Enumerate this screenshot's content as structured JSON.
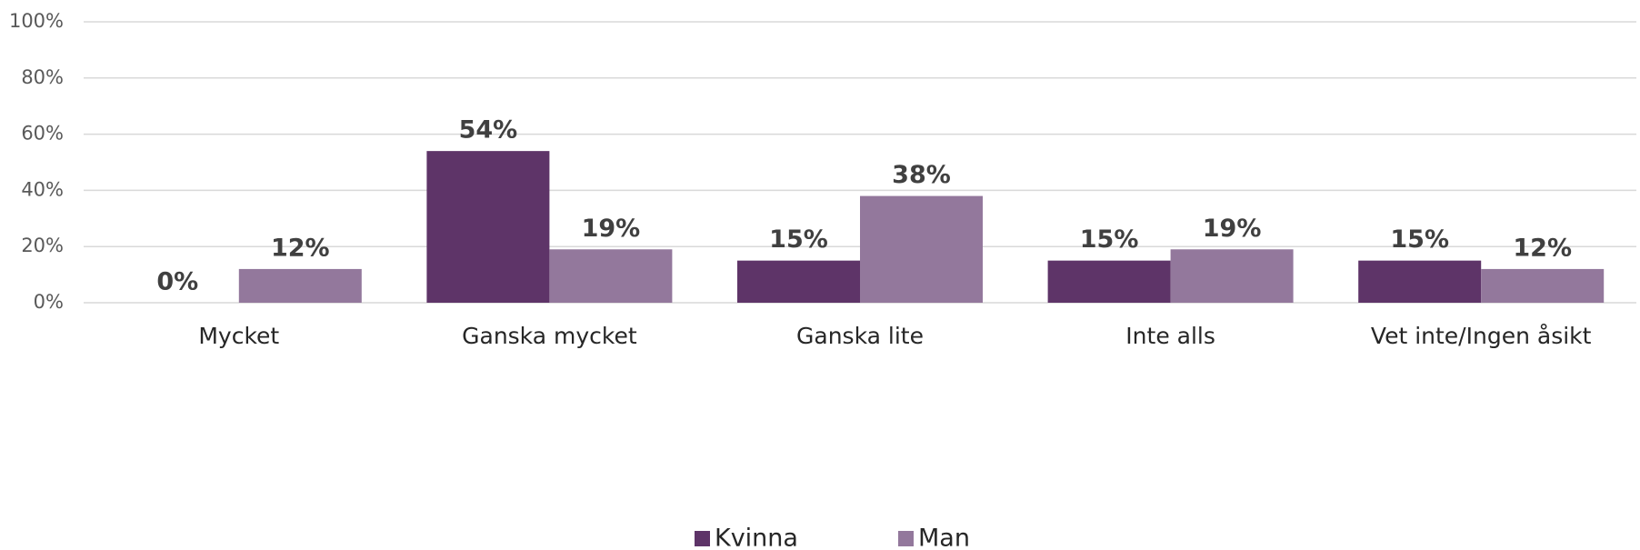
{
  "chart_data": {
    "type": "bar",
    "categories": [
      "Mycket",
      "Ganska mycket",
      "Ganska lite",
      "Inte alls",
      "Vet inte/Ingen åsikt"
    ],
    "series": [
      {
        "name": "Kvinna",
        "color": "#5e3468",
        "values": [
          0,
          54,
          15,
          15,
          15
        ],
        "value_labels": [
          "0%",
          "54%",
          "15%",
          "15%",
          "15%"
        ]
      },
      {
        "name": "Man",
        "color": "#93789c",
        "values": [
          12,
          19,
          38,
          19,
          12
        ],
        "value_labels": [
          "12%",
          "19%",
          "38%",
          "19%",
          "12%"
        ]
      }
    ],
    "ylim": [
      0,
      100
    ],
    "yticks": [
      {
        "value": 0,
        "label": "0%"
      },
      {
        "value": 20,
        "label": "20%"
      },
      {
        "value": 40,
        "label": "40%"
      },
      {
        "value": 60,
        "label": "60%"
      },
      {
        "value": 80,
        "label": "80%"
      },
      {
        "value": 100,
        "label": "100%"
      }
    ],
    "grid": true,
    "legend": "bottom"
  }
}
